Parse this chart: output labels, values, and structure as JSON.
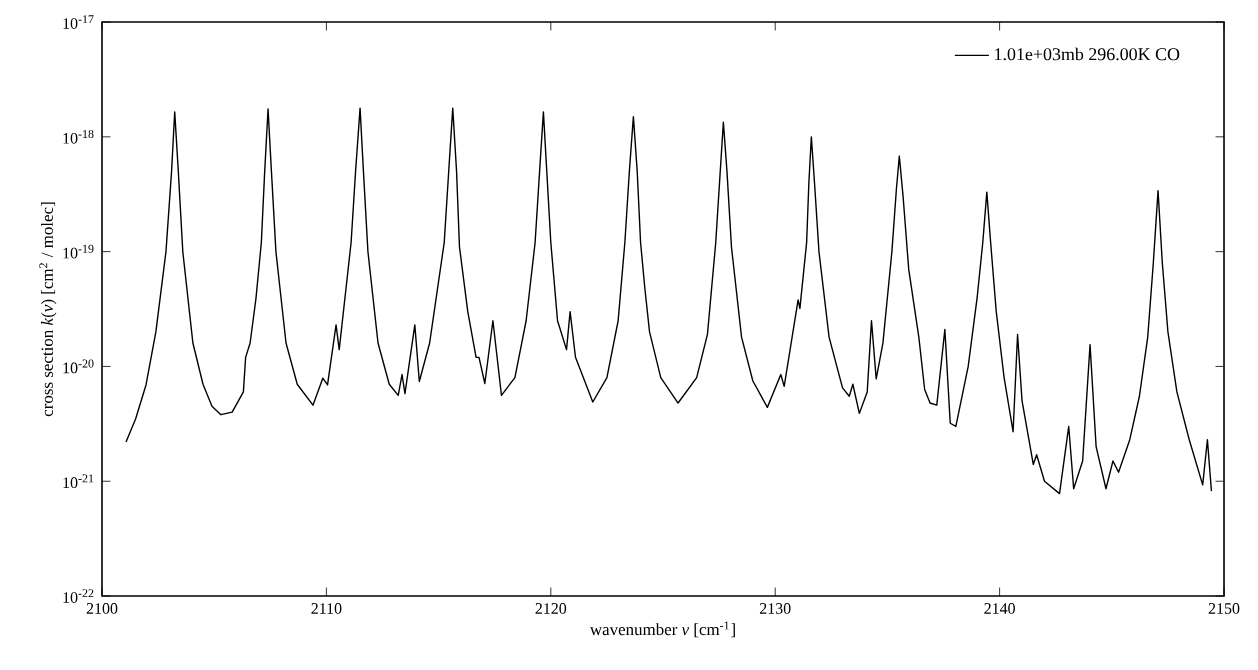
{
  "chart_data": {
    "type": "line",
    "xlabel": "wavenumber *ν* [cm$^{-1}$]",
    "ylabel": "cross section *k*(*ν*) [cm$^{2}$ / molec]",
    "xlim": [
      2100,
      2150
    ],
    "ylim": [
      1e-22,
      1e-17
    ],
    "log": "y",
    "grid": false,
    "legend": "top right",
    "marker": "none",
    "line_style": "solid",
    "xticks": [
      2100,
      2110,
      2120,
      2130,
      2140,
      2150
    ],
    "yticks": [
      {
        "value": 1e-22,
        "label": "10$^{-22}$"
      },
      {
        "value": 1e-21,
        "label": "10$^{-21}$"
      },
      {
        "value": 1e-20,
        "label": "10$^{-20}$"
      },
      {
        "value": 1e-19,
        "label": "10$^{-19}$"
      },
      {
        "value": 1e-18,
        "label": "10$^{-18}$"
      },
      {
        "value": 1e-17,
        "label": "10$^{-17}$"
      }
    ],
    "x": [
      2101.07,
      2101.5,
      2101.96,
      2102.4,
      2102.85,
      2103.1,
      2103.24,
      2103.4,
      2103.6,
      2104.05,
      2104.5,
      2104.9,
      2105.3,
      2105.8,
      2106.3,
      2106.4,
      2106.6,
      2106.86,
      2107.1,
      2107.25,
      2107.4,
      2107.55,
      2107.75,
      2108.2,
      2108.7,
      2109.4,
      2109.84,
      2110.05,
      2110.43,
      2110.57,
      2111.1,
      2111.3,
      2111.5,
      2111.65,
      2111.85,
      2112.3,
      2112.8,
      2113.2,
      2113.37,
      2113.5,
      2113.94,
      2114.14,
      2114.6,
      2115.25,
      2115.45,
      2115.63,
      2115.8,
      2115.93,
      2116.3,
      2116.67,
      2116.8,
      2117.06,
      2117.42,
      2117.8,
      2118.4,
      2118.9,
      2119.3,
      2119.5,
      2119.67,
      2119.82,
      2120.0,
      2120.3,
      2120.7,
      2120.86,
      2121.1,
      2121.87,
      2122.5,
      2123.0,
      2123.3,
      2123.5,
      2123.68,
      2123.85,
      2124.0,
      2124.19,
      2124.4,
      2124.9,
      2125.67,
      2126.5,
      2126.98,
      2127.35,
      2127.55,
      2127.69,
      2127.85,
      2128.05,
      2128.5,
      2129.0,
      2129.65,
      2130.25,
      2130.4,
      2131.02,
      2131.1,
      2131.4,
      2131.5,
      2131.61,
      2131.75,
      2131.95,
      2132.4,
      2133.0,
      2133.3,
      2133.46,
      2133.75,
      2134.1,
      2134.29,
      2134.5,
      2134.8,
      2135.2,
      2135.4,
      2135.53,
      2135.7,
      2135.95,
      2136.4,
      2136.66,
      2136.9,
      2137.2,
      2137.56,
      2137.8,
      2138.05,
      2138.6,
      2139.0,
      2139.25,
      2139.43,
      2139.6,
      2139.85,
      2140.2,
      2140.6,
      2140.8,
      2141.0,
      2141.5,
      2141.65,
      2142.0,
      2142.67,
      2143.08,
      2143.3,
      2143.7,
      2144.03,
      2144.3,
      2144.74,
      2145.05,
      2145.3,
      2145.8,
      2146.23,
      2146.6,
      2146.85,
      2147.06,
      2147.25,
      2147.5,
      2147.9,
      2148.45,
      2149.05,
      2149.26,
      2149.44
    ],
    "series": [
      {
        "name": "1.01e+03mb 296.00K CO",
        "color": "#000000",
        "values": [
          2.2e-21,
          3.5e-21,
          6.9e-21,
          2e-20,
          1e-19,
          5e-19,
          1.65e-18,
          5e-19,
          1e-19,
          1.6e-20,
          7e-21,
          4.5e-21,
          3.8e-21,
          4e-21,
          6e-21,
          1.2e-20,
          1.6e-20,
          3.9e-20,
          1.2e-19,
          5e-19,
          1.75e-18,
          5e-19,
          1e-19,
          1.6e-20,
          7e-21,
          4.6e-21,
          7.9e-21,
          6.9e-21,
          2.3e-20,
          1.4e-20,
          1.2e-19,
          5e-19,
          1.78e-18,
          5e-19,
          1e-19,
          1.6e-20,
          7e-21,
          5.6e-21,
          8.5e-21,
          5.8e-21,
          2.3e-20,
          7.4e-21,
          1.6e-20,
          1.2e-19,
          5e-19,
          1.78e-18,
          5e-19,
          1.1e-19,
          3e-20,
          1.2e-20,
          1.2e-20,
          7.1e-21,
          2.5e-20,
          5.6e-21,
          8e-21,
          2.5e-20,
          1.2e-19,
          5e-19,
          1.65e-18,
          5e-19,
          1.2e-19,
          2.5e-20,
          1.4e-20,
          3e-20,
          1.2e-20,
          4.9e-21,
          8e-21,
          2.5e-20,
          1.2e-19,
          5e-19,
          1.5e-18,
          5e-19,
          1.2e-19,
          4.8e-20,
          2e-20,
          8e-21,
          4.8e-21,
          8e-21,
          1.9e-20,
          1.2e-19,
          5e-19,
          1.34e-18,
          5e-19,
          1.1e-19,
          1.8e-20,
          7.5e-21,
          4.4e-21,
          8.5e-21,
          6.7e-21,
          3.8e-20,
          3.2e-20,
          1.2e-19,
          4e-19,
          1e-18,
          4e-19,
          1e-19,
          1.8e-20,
          6.5e-21,
          5.5e-21,
          7e-21,
          3.9e-21,
          6e-21,
          2.5e-20,
          7.8e-21,
          1.6e-20,
          1e-19,
          3.5e-19,
          6.8e-19,
          3e-19,
          7e-20,
          1.8e-20,
          6.3e-21,
          4.8e-21,
          4.6e-21,
          2.1e-20,
          3.2e-21,
          3e-21,
          1e-20,
          4e-20,
          1.2e-19,
          3.3e-19,
          1.2e-19,
          3e-20,
          8e-21,
          2.7e-21,
          1.9e-20,
          5e-21,
          1.4e-21,
          1.7e-21,
          1e-21,
          7.8e-22,
          3e-21,
          8.6e-22,
          1.5e-21,
          1.55e-20,
          2e-21,
          8.6e-22,
          1.5e-21,
          1.2e-21,
          2.3e-21,
          5.5e-21,
          1.8e-20,
          8e-20,
          3.4e-19,
          8e-20,
          2e-20,
          6e-21,
          2.3e-21,
          9.3e-22,
          2.3e-21,
          8.2e-22
        ]
      }
    ]
  }
}
